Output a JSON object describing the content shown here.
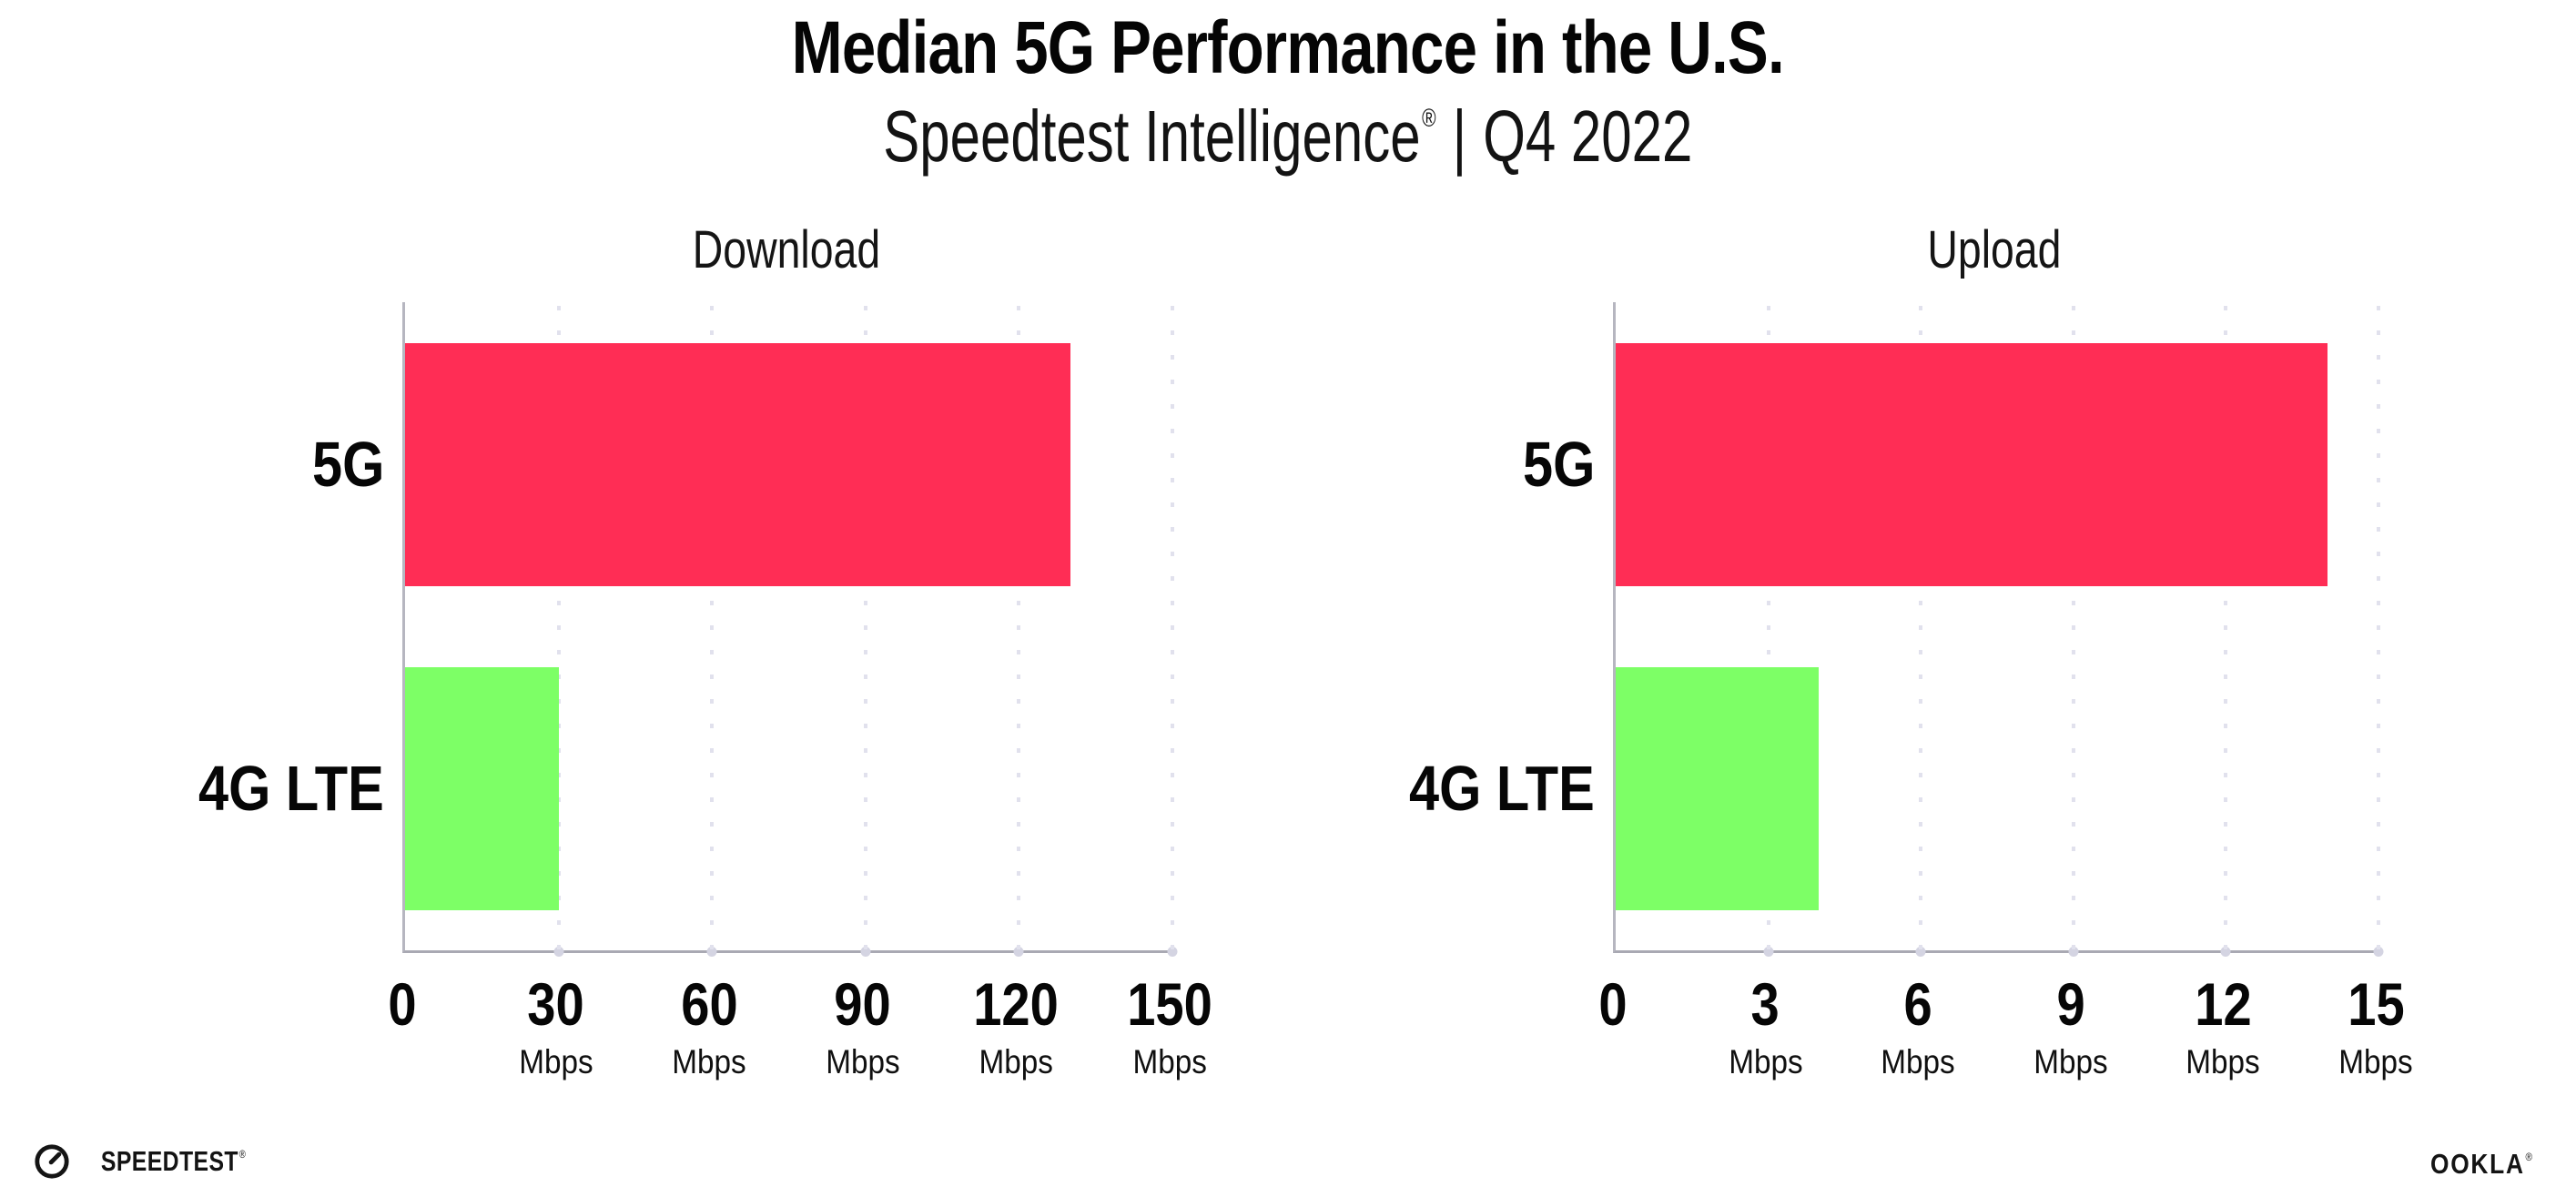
{
  "header": {
    "title": "Median 5G Performance in the U.S.",
    "subtitle": {
      "brand": "Speedtest Intelligence",
      "reg": "®",
      "divider": "|",
      "period": "Q4 2022"
    }
  },
  "chart_data": [
    {
      "type": "bar",
      "orientation": "horizontal",
      "title": "Download",
      "categories": [
        "5G",
        "4G LTE"
      ],
      "values": [
        130,
        30
      ],
      "value_unit": "Mbps",
      "xlim": [
        0,
        150
      ],
      "xticks": [
        0,
        30,
        60,
        90,
        120,
        150
      ],
      "tick_unit": "Mbps",
      "bar_colors": [
        "#FF2D55",
        "#7DFF66"
      ],
      "grid": "vertical-dotted",
      "legend": "none"
    },
    {
      "type": "bar",
      "orientation": "horizontal",
      "title": "Upload",
      "categories": [
        "5G",
        "4G LTE"
      ],
      "values": [
        14,
        4
      ],
      "value_unit": "Mbps",
      "xlim": [
        0,
        15
      ],
      "xticks": [
        0,
        3,
        6,
        9,
        12,
        15
      ],
      "tick_unit": "Mbps",
      "bar_colors": [
        "#FF2D55",
        "#7DFF66"
      ],
      "grid": "vertical-dotted",
      "legend": "none"
    }
  ],
  "footer": {
    "speedtest": {
      "label": "SPEEDTEST",
      "reg": "®",
      "icon": "speedtest-gauge-icon"
    },
    "ookla": {
      "label": "OOKLA",
      "reg": "®"
    }
  },
  "colors": {
    "bar_5g": "#FF2D55",
    "bar_4g_lte": "#7DFF66",
    "axis_line": "#a9a9b3",
    "gridline": "#e1e1ed",
    "background": "#ffffff",
    "text": "#060606"
  }
}
